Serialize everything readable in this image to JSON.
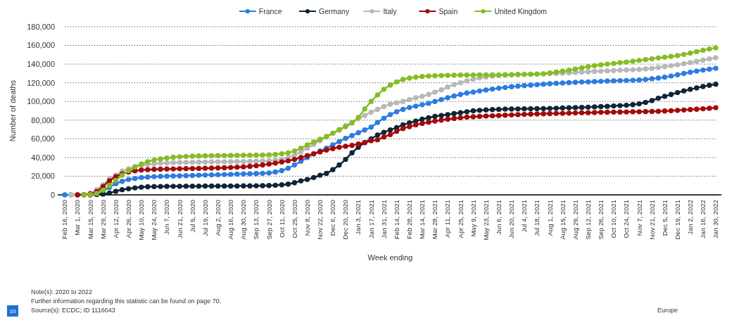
{
  "chart_data": {
    "type": "line",
    "xlabel": "Week ending",
    "ylabel": "Number of deaths",
    "categories": [
      "Feb 16, 2020",
      null,
      "Mar 1, 2020",
      null,
      "Mar 15, 2020",
      null,
      "Mar 29, 2020",
      null,
      "Apr 12, 2020",
      null,
      "Apr 26, 2020",
      null,
      "May 10, 2020",
      null,
      "May 24, 2020",
      null,
      "Jun 7, 2020",
      null,
      "Jun 21, 2020",
      null,
      "Jul 5, 2020",
      null,
      "Jul 19, 2020",
      null,
      "Aug 2, 2020",
      null,
      "Aug 16, 2020",
      null,
      "Aug 30, 2020",
      null,
      "Sep 13, 2020",
      null,
      "Sep 27, 2020",
      null,
      "Oct 11, 2020",
      null,
      "Oct 25, 2020",
      null,
      "Nov 8, 2020",
      null,
      "Nov 22, 2020",
      null,
      "Dec 6, 2020",
      null,
      "Dec 20, 2020",
      null,
      "Jan 3, 2021",
      null,
      "Jan 17, 2021",
      null,
      "Jan 31, 2021",
      null,
      "Feb 14, 2021",
      null,
      "Feb 28, 2021",
      null,
      "Mar 14, 2021",
      null,
      "Mar 28, 2021",
      null,
      "Apr 11, 2021",
      null,
      "Apr 25, 2021",
      null,
      "May 9, 2021",
      null,
      "May 23, 2021",
      null,
      "Jun 6, 2021",
      null,
      "Jun 20, 2021",
      null,
      "Jul 4, 2021",
      null,
      "Jul 18, 2021",
      null,
      "Aug 1, 2021",
      null,
      "Aug 15, 2021",
      null,
      "Aug 29, 2021",
      null,
      "Sep 12, 2021",
      null,
      "Sep 26, 2021",
      null,
      "Oct 10, 2021",
      null,
      "Oct 24, 2021",
      null,
      "Nov 7, 2021",
      null,
      "Nov 21, 2021",
      null,
      "Dec 5, 2021",
      null,
      "Dec 19, 2021",
      null,
      "Jan 2, 2022",
      null,
      "Jan 16, 2022",
      null,
      "Jan 30, 2022"
    ],
    "series": [
      {
        "name": "France",
        "color": "#2d7be0",
        "values": [
          0,
          0,
          0,
          100,
          300,
          1500,
          4000,
          8000,
          12000,
          14500,
          16500,
          17500,
          18500,
          19000,
          19500,
          19800,
          20000,
          20200,
          20400,
          20600,
          20800,
          21000,
          21200,
          21400,
          21600,
          21800,
          22000,
          22200,
          22400,
          22600,
          22800,
          23100,
          23500,
          24500,
          26000,
          28500,
          32000,
          36000,
          40000,
          44000,
          47000,
          50000,
          53500,
          57000,
          60500,
          63500,
          66500,
          69500,
          72500,
          77500,
          82000,
          86000,
          89000,
          91500,
          93500,
          95000,
          96500,
          98000,
          100000,
          102000,
          104000,
          105800,
          107500,
          109000,
          110000,
          111200,
          112300,
          113300,
          114200,
          115000,
          115800,
          116400,
          117000,
          117500,
          118000,
          118500,
          119000,
          119400,
          119800,
          120200,
          120500,
          120800,
          121000,
          121300,
          121600,
          121900,
          122100,
          122300,
          122500,
          122700,
          123000,
          123600,
          124300,
          125100,
          126000,
          127200,
          128600,
          130000,
          131300,
          132500,
          133600,
          134600,
          135500
        ]
      },
      {
        "name": "Germany",
        "color": "#0f2437",
        "values": [
          null,
          null,
          null,
          null,
          0,
          300,
          800,
          2000,
          3800,
          5500,
          6500,
          7500,
          8200,
          8700,
          8900,
          9000,
          9100,
          9200,
          9200,
          9300,
          9300,
          9300,
          9400,
          9400,
          9400,
          9500,
          9500,
          9500,
          9600,
          9600,
          9700,
          9800,
          10000,
          10300,
          10800,
          11500,
          13000,
          15000,
          16500,
          18500,
          21000,
          23000,
          27000,
          32000,
          38000,
          45000,
          51000,
          56000,
          60000,
          64000,
          67000,
          69500,
          72000,
          75000,
          77000,
          79000,
          81000,
          82500,
          84000,
          85000,
          86000,
          87000,
          88000,
          89000,
          90000,
          90500,
          91000,
          91300,
          91600,
          91800,
          91900,
          92000,
          92100,
          92200,
          92300,
          92400,
          92600,
          92800,
          93000,
          93200,
          93400,
          93600,
          93900,
          94200,
          94500,
          94800,
          95200,
          95600,
          96000,
          96600,
          97500,
          99000,
          101000,
          103500,
          105500,
          107500,
          109500,
          111300,
          113000,
          114500,
          116000,
          117300,
          118500
        ]
      },
      {
        "name": "Italy",
        "color": "#b8b8b8",
        "values": [
          null,
          0,
          100,
          400,
          1800,
          5500,
          10800,
          17000,
          21000,
          25500,
          28000,
          30000,
          31500,
          32500,
          33200,
          33800,
          34200,
          34500,
          34700,
          34800,
          34900,
          35000,
          35100,
          35200,
          35300,
          35400,
          35500,
          35600,
          35700,
          35800,
          36000,
          36200,
          36500,
          37000,
          38000,
          40000,
          42500,
          46000,
          50000,
          54000,
          58000,
          62000,
          66000,
          70000,
          74000,
          77500,
          81500,
          85000,
          88500,
          91500,
          94500,
          97000,
          98500,
          100000,
          102000,
          104000,
          105500,
          107500,
          110000,
          112500,
          115500,
          118000,
          120000,
          122000,
          123800,
          125200,
          126200,
          127000,
          127600,
          128100,
          128500,
          128800,
          129100,
          129300,
          129500,
          129700,
          129900,
          130100,
          130300,
          130600,
          131000,
          131400,
          131800,
          132200,
          132500,
          132800,
          133100,
          133400,
          133700,
          134000,
          134300,
          134800,
          135400,
          136300,
          137300,
          138300,
          139300,
          140400,
          141600,
          142900,
          144300,
          145600,
          146800
        ]
      },
      {
        "name": "Spain",
        "color": "#a30b0b",
        "values": [
          null,
          null,
          0,
          100,
          1000,
          3500,
          9000,
          15000,
          19500,
          22500,
          24500,
          25800,
          26600,
          27000,
          27300,
          27500,
          27700,
          27800,
          28000,
          28100,
          28200,
          28300,
          28500,
          28600,
          28800,
          29000,
          29300,
          29600,
          30000,
          30500,
          31200,
          32000,
          33000,
          34000,
          35300,
          36500,
          38000,
          40000,
          42000,
          44000,
          46000,
          48000,
          49500,
          51000,
          52000,
          53000,
          54500,
          56000,
          58000,
          59000,
          62000,
          64500,
          68000,
          71000,
          73000,
          75000,
          76500,
          77800,
          79000,
          80000,
          81000,
          81800,
          82500,
          83200,
          83600,
          84000,
          84400,
          84700,
          85000,
          85300,
          85600,
          85900,
          86200,
          86400,
          86600,
          86800,
          87000,
          87200,
          87300,
          87500,
          87700,
          87900,
          88000,
          88200,
          88400,
          88500,
          88600,
          88700,
          88800,
          88900,
          89000,
          89100,
          89300,
          89500,
          89800,
          90100,
          90500,
          90900,
          91300,
          91700,
          92200,
          92700,
          93300
        ]
      },
      {
        "name": "United Kingdom",
        "color": "#86bc25",
        "values": [
          null,
          null,
          null,
          0,
          200,
          1500,
          5000,
          10000,
          15500,
          21000,
          26000,
          30000,
          33000,
          35500,
          37300,
          38500,
          39500,
          40300,
          40800,
          41200,
          41500,
          41700,
          41800,
          41900,
          42000,
          42100,
          42200,
          42300,
          42400,
          42500,
          42600,
          42700,
          42900,
          43300,
          44000,
          45000,
          47000,
          50000,
          53500,
          56500,
          59500,
          62500,
          66000,
          69500,
          73000,
          77000,
          83000,
          92000,
          100000,
          107000,
          113000,
          117500,
          121000,
          123500,
          125000,
          126000,
          126800,
          127200,
          127500,
          127800,
          128000,
          128100,
          128200,
          128300,
          128300,
          128400,
          128400,
          128500,
          128500,
          128600,
          128700,
          128800,
          128900,
          129100,
          129300,
          129600,
          130500,
          131500,
          132500,
          133500,
          134700,
          136000,
          137300,
          138300,
          139200,
          140000,
          140700,
          141500,
          142300,
          143100,
          144000,
          144800,
          145700,
          146600,
          147400,
          148200,
          149200,
          150400,
          151800,
          153300,
          154800,
          156200,
          157500
        ]
      }
    ],
    "ylim": [
      0,
      180000
    ],
    "yticks": [
      0,
      {
        "value": 20000,
        "label": "20,000"
      },
      {
        "value": 40000,
        "label": "40,000"
      },
      {
        "value": 60000,
        "label": "60,000"
      },
      {
        "value": 80000,
        "label": "80,000"
      },
      {
        "value": 100000,
        "label": "100,000"
      },
      {
        "value": 120000,
        "label": "120,000"
      },
      {
        "value": 140000,
        "label": "140,000"
      },
      {
        "value": 160000,
        "label": "160,000"
      },
      {
        "value": 180000,
        "label": "180,000"
      }
    ],
    "grid": "y",
    "legend": "top",
    "marker": "circle",
    "line_style": "solid",
    "annotations": [
      "Note(s): 2020 to 2022",
      "Further information regarding this statistic can be found on page 70.",
      "Source(s): ECDC; ID 1116043",
      "Europe",
      "10"
    ]
  }
}
